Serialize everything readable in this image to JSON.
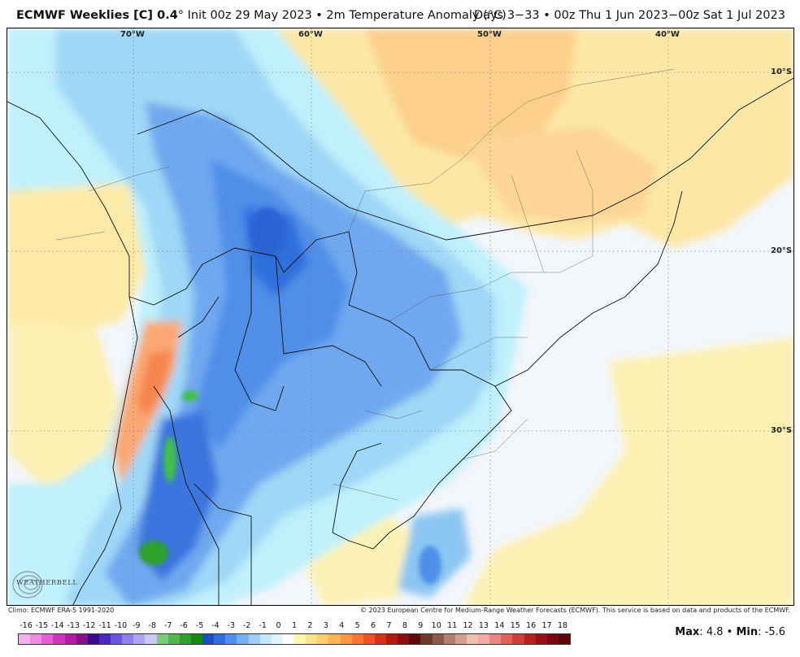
{
  "header": {
    "title_bold": "ECMWF Weeklies [C] 0.4",
    "title_rest": "° Init 00z 29 May 2023 • 2m Temperature Anomaly (°C)",
    "valid": "Days 3−33 • 00z Thu 1 Jun 2023−00z Sat 1 Jul 2023"
  },
  "map": {
    "longitude_labels": [
      "70°W",
      "60°W",
      "50°W",
      "40°W"
    ],
    "latitude_labels": [
      "10°S",
      "20°S",
      "30°S"
    ]
  },
  "footer": {
    "climo": "Climo: ECMWF ERA-5 1991-2020",
    "copyright": "© 2023 European Centre for Medium-Range Weather Forecasts (ECMWF). This service is based on data and products of the ECMWF.",
    "logo_text": "WEATHERBELL",
    "max_label": "Max",
    "max_value": "4.8",
    "separator": "•",
    "min_label": "Min",
    "min_value": "-5.6"
  },
  "legend": {
    "labels": [
      "-16",
      "-15",
      "-14",
      "-13",
      "-12",
      "-11",
      "-10",
      "-9",
      "-8",
      "-7",
      "-6",
      "-5",
      "-4",
      "-3",
      "-2",
      "-1",
      "0",
      "1",
      "2",
      "3",
      "4",
      "5",
      "6",
      "7",
      "8",
      "9",
      "10",
      "11",
      "12",
      "13",
      "14",
      "15",
      "16",
      "17",
      "18"
    ],
    "colors": [
      "#f7b0ee",
      "#f08ae3",
      "#e65ed5",
      "#cf35c0",
      "#b31aa6",
      "#8c0f87",
      "#3a0b8c",
      "#4a27c2",
      "#6a55e0",
      "#8c80ee",
      "#aaa5f6",
      "#c8c8fb",
      "#7ecb7c",
      "#52b84e",
      "#2ea12a",
      "#148a12",
      "#1e4fc0",
      "#2f6fe0",
      "#4f8ff0",
      "#78b0f8",
      "#a0cdfc",
      "#c3e8fd",
      "#dff6fd",
      "#ffffff",
      "#fff6b0",
      "#ffe48a",
      "#ffcf6e",
      "#ffb452",
      "#ff9642",
      "#ff7532",
      "#f25024",
      "#d9301a",
      "#b51814",
      "#8e0c10",
      "#5e0a0a",
      "#6b3a2a",
      "#8a5a4a",
      "#b08070",
      "#d0a090",
      "#eec0b0",
      "#f4a8a8",
      "#ec8484",
      "#e06060",
      "#d03c3c",
      "#b82020",
      "#9a0f14",
      "#7a070e",
      "#5a050a"
    ]
  }
}
